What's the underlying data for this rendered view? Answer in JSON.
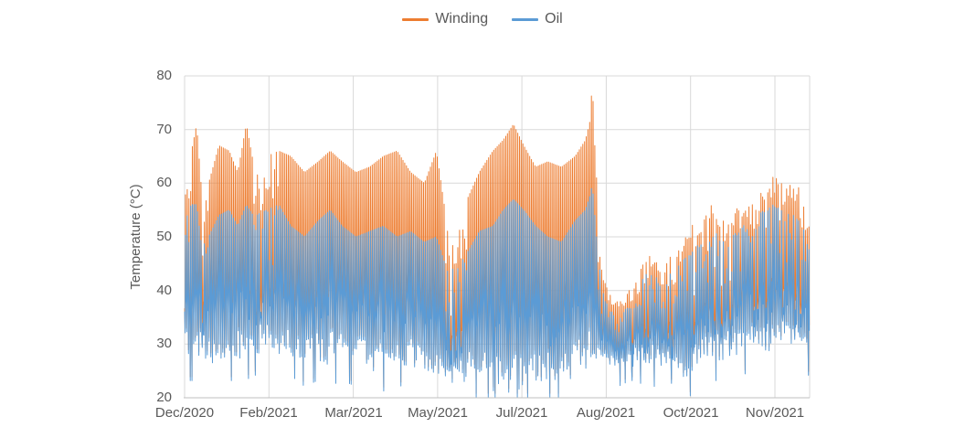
{
  "chart_data": {
    "type": "line",
    "title": "",
    "ylabel": "Temperature (°C)",
    "ylim": [
      20,
      80
    ],
    "y_ticks": [
      20,
      30,
      40,
      50,
      60,
      70,
      80
    ],
    "x_tick_labels": [
      "Dec/2020",
      "Feb/2021",
      "Mar/2021",
      "May/2021",
      "Jul/2021",
      "Aug/2021",
      "Oct/2021",
      "Nov/2021"
    ],
    "period": "Dec/2020 - Nov/2021",
    "grid": true,
    "legend_position": "top",
    "series": [
      {
        "name": "Winding",
        "color": "#ED7D31"
      },
      {
        "name": "Oil",
        "color": "#5B9BD5"
      }
    ],
    "sampling": "dense (sub-daily) sensor readings across one year; rendered from the daily envelope keypoints below",
    "envelope_keypoints": {
      "description": "[day_index, oil_low_C, oil_high_C, winding_high_C] estimated from plot; day 0 = left edge (Dec 2020), day 365 = right edge",
      "points": [
        [
          0,
          27,
          54,
          62
        ],
        [
          4,
          27,
          56,
          66
        ],
        [
          7,
          27,
          56,
          71
        ],
        [
          10,
          28,
          48,
          58
        ],
        [
          14,
          26,
          50,
          60
        ],
        [
          20,
          26,
          54,
          67
        ],
        [
          26,
          27,
          55,
          66
        ],
        [
          31,
          27,
          52,
          62
        ],
        [
          36,
          27,
          56,
          71
        ],
        [
          40,
          28,
          54,
          64
        ],
        [
          48,
          28,
          55,
          65
        ],
        [
          55,
          27,
          56,
          66
        ],
        [
          62,
          28,
          52,
          65
        ],
        [
          70,
          26,
          50,
          62
        ],
        [
          78,
          27,
          53,
          64
        ],
        [
          85,
          26,
          55,
          66
        ],
        [
          92,
          27,
          52,
          64
        ],
        [
          100,
          26,
          50,
          62
        ],
        [
          108,
          25,
          51,
          63
        ],
        [
          116,
          25,
          52,
          65
        ],
        [
          124,
          26,
          50,
          66
        ],
        [
          132,
          26,
          51,
          62
        ],
        [
          140,
          25,
          49,
          60
        ],
        [
          147,
          24,
          50,
          66
        ],
        [
          152,
          22,
          45,
          55
        ],
        [
          158,
          22,
          44,
          53
        ],
        [
          165,
          23,
          47,
          57
        ],
        [
          172,
          24,
          51,
          62
        ],
        [
          180,
          21,
          52,
          66
        ],
        [
          186,
          21,
          55,
          68
        ],
        [
          192,
          20,
          57,
          71
        ],
        [
          198,
          21,
          55,
          67
        ],
        [
          205,
          22,
          52,
          63
        ],
        [
          212,
          23,
          50,
          64
        ],
        [
          220,
          22,
          49,
          63
        ],
        [
          228,
          24,
          53,
          65
        ],
        [
          234,
          25,
          55,
          68
        ],
        [
          237,
          26,
          58,
          72
        ],
        [
          238,
          26,
          60,
          80.5
        ],
        [
          239,
          26,
          56,
          70
        ],
        [
          241,
          26,
          48,
          58
        ],
        [
          244,
          27,
          40,
          46
        ],
        [
          248,
          26,
          36,
          40
        ],
        [
          254,
          26,
          36,
          39
        ],
        [
          260,
          27,
          37,
          41
        ],
        [
          265,
          27,
          39,
          43
        ],
        [
          268,
          26,
          43,
          50
        ],
        [
          274,
          26,
          44,
          48
        ],
        [
          280,
          25,
          42,
          46
        ],
        [
          286,
          27,
          44,
          48
        ],
        [
          292,
          23,
          46,
          52
        ],
        [
          298,
          25,
          48,
          54
        ],
        [
          304,
          26,
          50,
          56
        ],
        [
          308,
          27,
          52,
          59
        ],
        [
          314,
          27,
          49,
          55
        ],
        [
          320,
          28,
          51,
          57
        ],
        [
          326,
          28,
          52,
          59
        ],
        [
          332,
          29,
          53,
          61
        ],
        [
          338,
          29,
          55,
          63
        ],
        [
          344,
          28,
          56,
          65
        ],
        [
          350,
          29,
          55,
          63
        ],
        [
          356,
          29,
          54,
          62
        ],
        [
          361,
          28,
          52,
          61
        ],
        [
          365,
          28,
          47,
          56
        ]
      ]
    },
    "notable_features": {
      "winding_max": 80.5,
      "winding_max_location": "just before Aug/2021 tick",
      "oil_min": 20,
      "oil_min_location": "around Jul/2021",
      "quiet_period": "after Aug/2021 tick: both series confined to about 26-40 C",
      "winding_spikes_71C": "two in Dec/2020-Jan/2021 and several around Jun-Jul/2021"
    },
    "colors": {
      "winding": "#ED7D31",
      "oil": "#5B9BD5",
      "gridline": "#D9D9D9",
      "axis_line": "#BFBFBF",
      "text": "#595959"
    },
    "render_seed": 42
  }
}
